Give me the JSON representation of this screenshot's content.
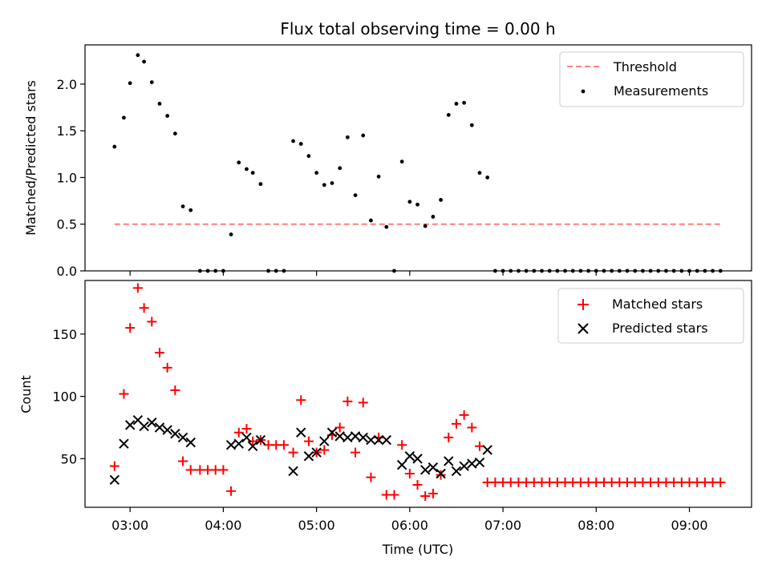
{
  "chart_data": [
    {
      "type": "scatter",
      "title": "Flux total observing time = 0.00 h",
      "ylabel": "Matched/Predicted stars",
      "xlabel": "",
      "xlim": [
        "02:31",
        "09:40"
      ],
      "ylim": [
        0,
        2.42
      ],
      "x_unit": "time of day (HH:MM, UTC)",
      "yticks": [
        "0.0",
        "0.5",
        "1.0",
        "1.5",
        "2.0"
      ],
      "grid": false,
      "legend": {
        "position": "top-right",
        "entries": [
          "Threshold",
          "Measurements"
        ]
      },
      "threshold": {
        "name": "Threshold",
        "value": 0.5,
        "x_start": "02:50",
        "x_end": "09:20",
        "style": "dashed",
        "color": "#ff7f7f"
      },
      "series": [
        {
          "name": "Measurements",
          "marker": "dot",
          "color": "#000000",
          "x": [
            "02:50",
            "02:56",
            "03:00",
            "03:05",
            "03:09",
            "03:14",
            "03:19",
            "03:24",
            "03:29",
            "03:34",
            "03:39",
            "03:45",
            "03:50",
            "03:55",
            "04:00",
            "04:05",
            "04:10",
            "04:15",
            "04:19",
            "04:24",
            "04:29",
            "04:34",
            "04:39",
            "04:45",
            "04:50",
            "04:55",
            "05:00",
            "05:05",
            "05:10",
            "05:15",
            "05:20",
            "05:25",
            "05:30",
            "05:35",
            "05:40",
            "05:45",
            "05:50",
            "05:55",
            "06:00",
            "06:05",
            "06:10",
            "06:15",
            "06:20",
            "06:25",
            "06:30",
            "06:35",
            "06:40",
            "06:45",
            "06:50",
            "06:55",
            "07:00",
            "07:05",
            "07:10",
            "07:15",
            "07:20",
            "07:25",
            "07:30",
            "07:35",
            "07:40",
            "07:45",
            "07:50",
            "07:55",
            "08:00",
            "08:05",
            "08:10",
            "08:15",
            "08:20",
            "08:25",
            "08:30",
            "08:35",
            "08:40",
            "08:45",
            "08:50",
            "08:55",
            "09:00",
            "09:05",
            "09:10",
            "09:15",
            "09:20"
          ],
          "y": [
            1.33,
            1.64,
            2.01,
            2.31,
            2.24,
            2.02,
            1.79,
            1.66,
            1.47,
            0.69,
            0.65,
            0.0,
            0.0,
            0.0,
            0.0,
            0.39,
            1.16,
            1.09,
            1.05,
            0.93,
            0.0,
            0.0,
            0.0,
            1.39,
            1.36,
            1.23,
            1.05,
            0.92,
            0.94,
            1.1,
            1.43,
            0.81,
            1.45,
            0.54,
            1.01,
            0.47,
            0.0,
            1.17,
            0.74,
            0.71,
            0.48,
            0.58,
            0.76,
            1.67,
            1.79,
            1.8,
            1.56,
            1.05,
            1.0,
            0.0,
            0.0,
            0.0,
            0.0,
            0.0,
            0.0,
            0.0,
            0.0,
            0.0,
            0.0,
            0.0,
            0.0,
            0.0,
            0.0,
            0.0,
            0.0,
            0.0,
            0.0,
            0.0,
            0.0,
            0.0,
            0.0,
            0.0,
            0.0,
            0.0,
            0.0,
            0.0,
            0.0,
            0.0,
            0.0
          ]
        }
      ]
    },
    {
      "type": "scatter",
      "title": "",
      "ylabel": "Count",
      "xlabel": "Time (UTC)",
      "xlim": [
        "02:31",
        "09:40"
      ],
      "ylim": [
        11,
        193
      ],
      "x_unit": "time of day (HH:MM, UTC)",
      "xticks": [
        "03:00",
        "04:00",
        "05:00",
        "06:00",
        "07:00",
        "08:00",
        "09:00"
      ],
      "yticks": [
        "50",
        "100",
        "150"
      ],
      "grid": false,
      "legend": {
        "position": "top-right",
        "entries": [
          "Matched stars",
          "Predicted stars"
        ]
      },
      "series": [
        {
          "name": "Matched stars",
          "marker": "plus",
          "color": "#ff0000",
          "x": [
            "02:50",
            "02:56",
            "03:00",
            "03:05",
            "03:09",
            "03:14",
            "03:19",
            "03:24",
            "03:29",
            "03:34",
            "03:39",
            "03:45",
            "03:50",
            "03:55",
            "04:00",
            "04:05",
            "04:10",
            "04:15",
            "04:19",
            "04:24",
            "04:29",
            "04:34",
            "04:39",
            "04:45",
            "04:50",
            "04:55",
            "05:00",
            "05:05",
            "05:10",
            "05:15",
            "05:20",
            "05:25",
            "05:30",
            "05:35",
            "05:40",
            "05:45",
            "05:50",
            "05:55",
            "06:00",
            "06:05",
            "06:10",
            "06:15",
            "06:20",
            "06:25",
            "06:30",
            "06:35",
            "06:40",
            "06:45",
            "06:50",
            "06:55",
            "07:00",
            "07:05",
            "07:10",
            "07:15",
            "07:20",
            "07:25",
            "07:30",
            "07:35",
            "07:40",
            "07:45",
            "07:50",
            "07:55",
            "08:00",
            "08:05",
            "08:10",
            "08:15",
            "08:20",
            "08:25",
            "08:30",
            "08:35",
            "08:40",
            "08:45",
            "08:50",
            "08:55",
            "09:00",
            "09:05",
            "09:10",
            "09:15",
            "09:20"
          ],
          "y": [
            44,
            102,
            155,
            187,
            171,
            160,
            135,
            123,
            105,
            48,
            41,
            41,
            41,
            41,
            41,
            24,
            71,
            74,
            64,
            65,
            61,
            61,
            61,
            55,
            97,
            64,
            55,
            57,
            69,
            75,
            96,
            55,
            95,
            35,
            67,
            21,
            21,
            61,
            38,
            29,
            20,
            22,
            37,
            67,
            78,
            85,
            75,
            60,
            31,
            31,
            31,
            31,
            31,
            31,
            31,
            31,
            31,
            31,
            31,
            31,
            31,
            31,
            31,
            31,
            31,
            31,
            31,
            31,
            31,
            31,
            31,
            31,
            31,
            31,
            31,
            31,
            31,
            31,
            31
          ]
        },
        {
          "name": "Predicted stars",
          "marker": "x",
          "color": "#000000",
          "x": [
            "02:50",
            "02:56",
            "03:00",
            "03:05",
            "03:09",
            "03:14",
            "03:19",
            "03:24",
            "03:29",
            "03:34",
            "03:39",
            "04:05",
            "04:10",
            "04:15",
            "04:19",
            "04:24",
            "04:45",
            "04:50",
            "04:55",
            "05:00",
            "05:05",
            "05:10",
            "05:15",
            "05:20",
            "05:25",
            "05:30",
            "05:35",
            "05:40",
            "05:45",
            "05:55",
            "06:00",
            "06:05",
            "06:10",
            "06:15",
            "06:20",
            "06:25",
            "06:30",
            "06:35",
            "06:40",
            "06:45",
            "06:50"
          ],
          "y": [
            33,
            62,
            77,
            81,
            76,
            79,
            75,
            73,
            70,
            67,
            63,
            61,
            62,
            67,
            60,
            65,
            40,
            71,
            52,
            55,
            64,
            71,
            68,
            67,
            68,
            67,
            65,
            65,
            65,
            45,
            52,
            50,
            41,
            43,
            38,
            48,
            40,
            44,
            46,
            47,
            57
          ]
        }
      ]
    }
  ]
}
